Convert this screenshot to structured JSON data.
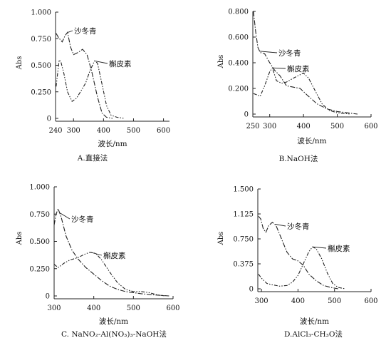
{
  "chart_data": [
    {
      "type": "line",
      "caption": "A.直接法",
      "xlabel": "波长/nm",
      "ylabel": "Abs",
      "xlim": [
        240,
        620
      ],
      "ylim": [
        0,
        1.0
      ],
      "xticks": [
        240,
        300,
        400,
        500,
        600
      ],
      "yticks": [
        0,
        0.25,
        0.5,
        0.75,
        1.0
      ],
      "ytick_labels": [
        "0",
        "0.250",
        "0.500",
        "0.750",
        "1.000"
      ],
      "series": [
        {
          "name": "沙冬青",
          "style": "dashdot",
          "points": [
            [
              242,
              0.8
            ],
            [
              250,
              0.76
            ],
            [
              262,
              0.72
            ],
            [
              272,
              0.78
            ],
            [
              280,
              0.81
            ],
            [
              290,
              0.67
            ],
            [
              300,
              0.6
            ],
            [
              315,
              0.62
            ],
            [
              330,
              0.65
            ],
            [
              345,
              0.6
            ],
            [
              360,
              0.45
            ],
            [
              380,
              0.2
            ],
            [
              395,
              0.05
            ],
            [
              410,
              0.01
            ],
            [
              430,
              0.0
            ]
          ]
        },
        {
          "name": "槲皮素",
          "style": "dashdotdot",
          "points": [
            [
              242,
              0.3
            ],
            [
              252,
              0.55
            ],
            [
              258,
              0.53
            ],
            [
              268,
              0.42
            ],
            [
              280,
              0.25
            ],
            [
              295,
              0.16
            ],
            [
              310,
              0.19
            ],
            [
              325,
              0.26
            ],
            [
              340,
              0.33
            ],
            [
              355,
              0.45
            ],
            [
              370,
              0.54
            ],
            [
              380,
              0.52
            ],
            [
              395,
              0.32
            ],
            [
              410,
              0.12
            ],
            [
              425,
              0.03
            ],
            [
              445,
              0.01
            ],
            [
              470,
              0.0
            ]
          ]
        }
      ]
    },
    {
      "type": "line",
      "caption": "B.NaOH法",
      "xlabel": "波长/nm",
      "ylabel": "Abs",
      "xlim": [
        250,
        600
      ],
      "ylim": [
        0,
        0.8
      ],
      "xticks": [
        250,
        300,
        400,
        500,
        600
      ],
      "yticks": [
        0,
        0.2,
        0.4,
        0.6,
        0.8
      ],
      "ytick_labels": [
        "0",
        "0.200",
        "0.400",
        "0.600",
        "0.800"
      ],
      "series": [
        {
          "name": "沙冬青",
          "style": "dashdot",
          "points": [
            [
              252,
              0.8
            ],
            [
              258,
              0.65
            ],
            [
              265,
              0.52
            ],
            [
              272,
              0.48
            ],
            [
              285,
              0.47
            ],
            [
              300,
              0.4
            ],
            [
              315,
              0.34
            ],
            [
              330,
              0.3
            ],
            [
              350,
              0.22
            ],
            [
              370,
              0.21
            ],
            [
              390,
              0.2
            ],
            [
              410,
              0.15
            ],
            [
              440,
              0.08
            ],
            [
              470,
              0.04
            ],
            [
              500,
              0.02
            ],
            [
              530,
              0.01
            ],
            [
              560,
              0.0
            ]
          ]
        },
        {
          "name": "槲皮素",
          "style": "dashdotdot",
          "points": [
            [
              252,
              0.16
            ],
            [
              262,
              0.15
            ],
            [
              272,
              0.14
            ],
            [
              285,
              0.22
            ],
            [
              300,
              0.33
            ],
            [
              308,
              0.36
            ],
            [
              320,
              0.26
            ],
            [
              335,
              0.24
            ],
            [
              350,
              0.25
            ],
            [
              370,
              0.28
            ],
            [
              385,
              0.3
            ],
            [
              400,
              0.32
            ],
            [
              415,
              0.28
            ],
            [
              435,
              0.18
            ],
            [
              455,
              0.08
            ],
            [
              475,
              0.03
            ],
            [
              500,
              0.01
            ],
            [
              540,
              0.0
            ]
          ]
        }
      ]
    },
    {
      "type": "line",
      "caption": "C. NaNO₂-Al(NO₃)₃-NaOH法",
      "xlabel": "波长/nm",
      "ylabel": "Abs",
      "xlim": [
        300,
        600
      ],
      "ylim": [
        0,
        1.0
      ],
      "xticks": [
        300,
        400,
        500,
        600
      ],
      "yticks": [
        0,
        0.25,
        0.5,
        0.75,
        1.0
      ],
      "ytick_labels": [
        "0",
        "0.250",
        "0.500",
        "0.750",
        "1.000"
      ],
      "series": [
        {
          "name": "沙冬青",
          "style": "dashdot",
          "points": [
            [
              300,
              0.65
            ],
            [
              305,
              0.75
            ],
            [
              310,
              0.8
            ],
            [
              318,
              0.72
            ],
            [
              330,
              0.55
            ],
            [
              345,
              0.42
            ],
            [
              360,
              0.34
            ],
            [
              380,
              0.26
            ],
            [
              400,
              0.2
            ],
            [
              420,
              0.14
            ],
            [
              440,
              0.09
            ],
            [
              460,
              0.06
            ],
            [
              480,
              0.04
            ],
            [
              500,
              0.03
            ],
            [
              520,
              0.02
            ],
            [
              550,
              0.01
            ],
            [
              590,
              0.0
            ]
          ]
        },
        {
          "name": "槲皮素",
          "style": "dashdotdot",
          "points": [
            [
              300,
              0.29
            ],
            [
              310,
              0.26
            ],
            [
              325,
              0.3
            ],
            [
              340,
              0.33
            ],
            [
              360,
              0.35
            ],
            [
              375,
              0.38
            ],
            [
              390,
              0.4
            ],
            [
              405,
              0.39
            ],
            [
              420,
              0.33
            ],
            [
              440,
              0.22
            ],
            [
              460,
              0.12
            ],
            [
              480,
              0.06
            ],
            [
              500,
              0.04
            ],
            [
              520,
              0.04
            ],
            [
              540,
              0.03
            ],
            [
              560,
              0.01
            ],
            [
              580,
              0.0
            ]
          ]
        }
      ]
    },
    {
      "type": "line",
      "caption": "D.AlCl₃-CH₃O法",
      "xlabel": "波长/nm",
      "ylabel": "Abs",
      "xlim": [
        290,
        600
      ],
      "ylim": [
        0,
        1.5
      ],
      "xticks": [
        300,
        400,
        500,
        600
      ],
      "xtick_labels": [
        "300",
        "400",
        "500",
        "600"
      ],
      "yticks": [
        0,
        0.375,
        0.75,
        1.125,
        1.5
      ],
      "ytick_labels": [
        "0",
        "0.375",
        "0.750",
        "1.125",
        "1.500"
      ],
      "series": [
        {
          "name": "沙冬青",
          "style": "dashdot",
          "points": [
            [
              292,
              1.09
            ],
            [
              298,
              1.05
            ],
            [
              305,
              0.9
            ],
            [
              312,
              0.85
            ],
            [
              320,
              0.95
            ],
            [
              330,
              1.0
            ],
            [
              340,
              0.95
            ],
            [
              355,
              0.75
            ],
            [
              370,
              0.55
            ],
            [
              385,
              0.45
            ],
            [
              400,
              0.42
            ],
            [
              415,
              0.35
            ],
            [
              430,
              0.22
            ],
            [
              450,
              0.12
            ],
            [
              470,
              0.05
            ],
            [
              490,
              0.02
            ],
            [
              510,
              0.0
            ]
          ]
        },
        {
          "name": "槲皮素",
          "style": "dashdotdot",
          "points": [
            [
              292,
              0.22
            ],
            [
              300,
              0.16
            ],
            [
              315,
              0.08
            ],
            [
              330,
              0.06
            ],
            [
              350,
              0.04
            ],
            [
              370,
              0.05
            ],
            [
              385,
              0.1
            ],
            [
              400,
              0.2
            ],
            [
              415,
              0.38
            ],
            [
              430,
              0.56
            ],
            [
              440,
              0.63
            ],
            [
              450,
              0.6
            ],
            [
              465,
              0.45
            ],
            [
              480,
              0.24
            ],
            [
              495,
              0.08
            ],
            [
              510,
              0.02
            ],
            [
              530,
              0.0
            ]
          ]
        }
      ]
    }
  ],
  "panels": [
    {
      "label_a": "沙冬青",
      "label_b": "槲皮素"
    },
    {
      "label_a": "沙冬青",
      "label_b": "槲皮素"
    },
    {
      "label_a": "沙冬青",
      "label_b": "槲皮素"
    },
    {
      "label_a": "沙冬青",
      "label_b": "槲皮素"
    }
  ]
}
